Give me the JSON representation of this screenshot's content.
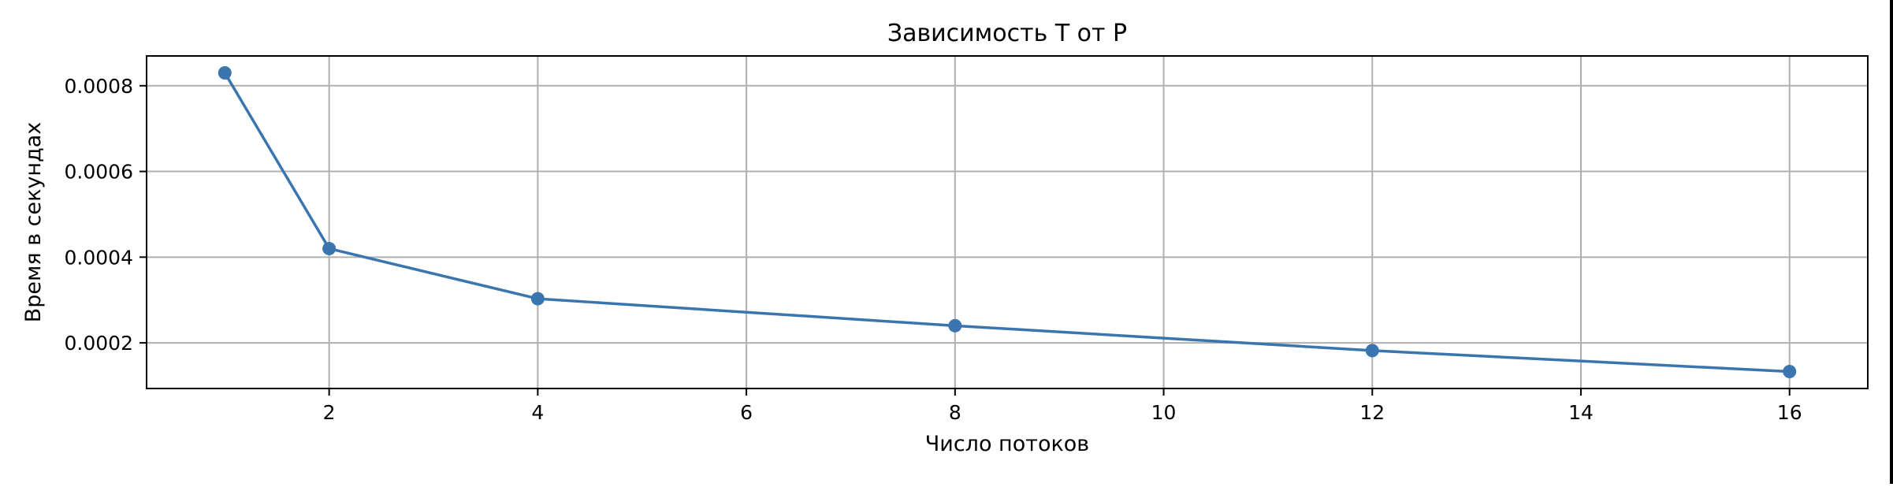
{
  "chart_data": {
    "type": "line",
    "title": "Зависимость T от P",
    "xlabel": "Число потоков",
    "ylabel": "Время в секундах",
    "xlim": [
      0.25,
      16.75
    ],
    "ylim": [
      9.35e-05,
      0.0008695
    ],
    "x_ticks": [
      2,
      4,
      6,
      8,
      10,
      12,
      14,
      16
    ],
    "y_ticks": [
      0.0002,
      0.0004,
      0.0006,
      0.0008
    ],
    "x_tick_labels": [
      "2",
      "4",
      "6",
      "8",
      "10",
      "12",
      "14",
      "16"
    ],
    "y_tick_labels": [
      "0.0002",
      "0.0004",
      "0.0006",
      "0.0008"
    ],
    "grid": true,
    "series": [
      {
        "x": [
          1,
          2,
          4,
          8,
          12,
          16
        ],
        "values": [
          0.00083,
          0.00042,
          0.000303,
          0.00024,
          0.000182,
          0.000133
        ],
        "color": "#3a75b0",
        "marker": "circle"
      }
    ]
  }
}
